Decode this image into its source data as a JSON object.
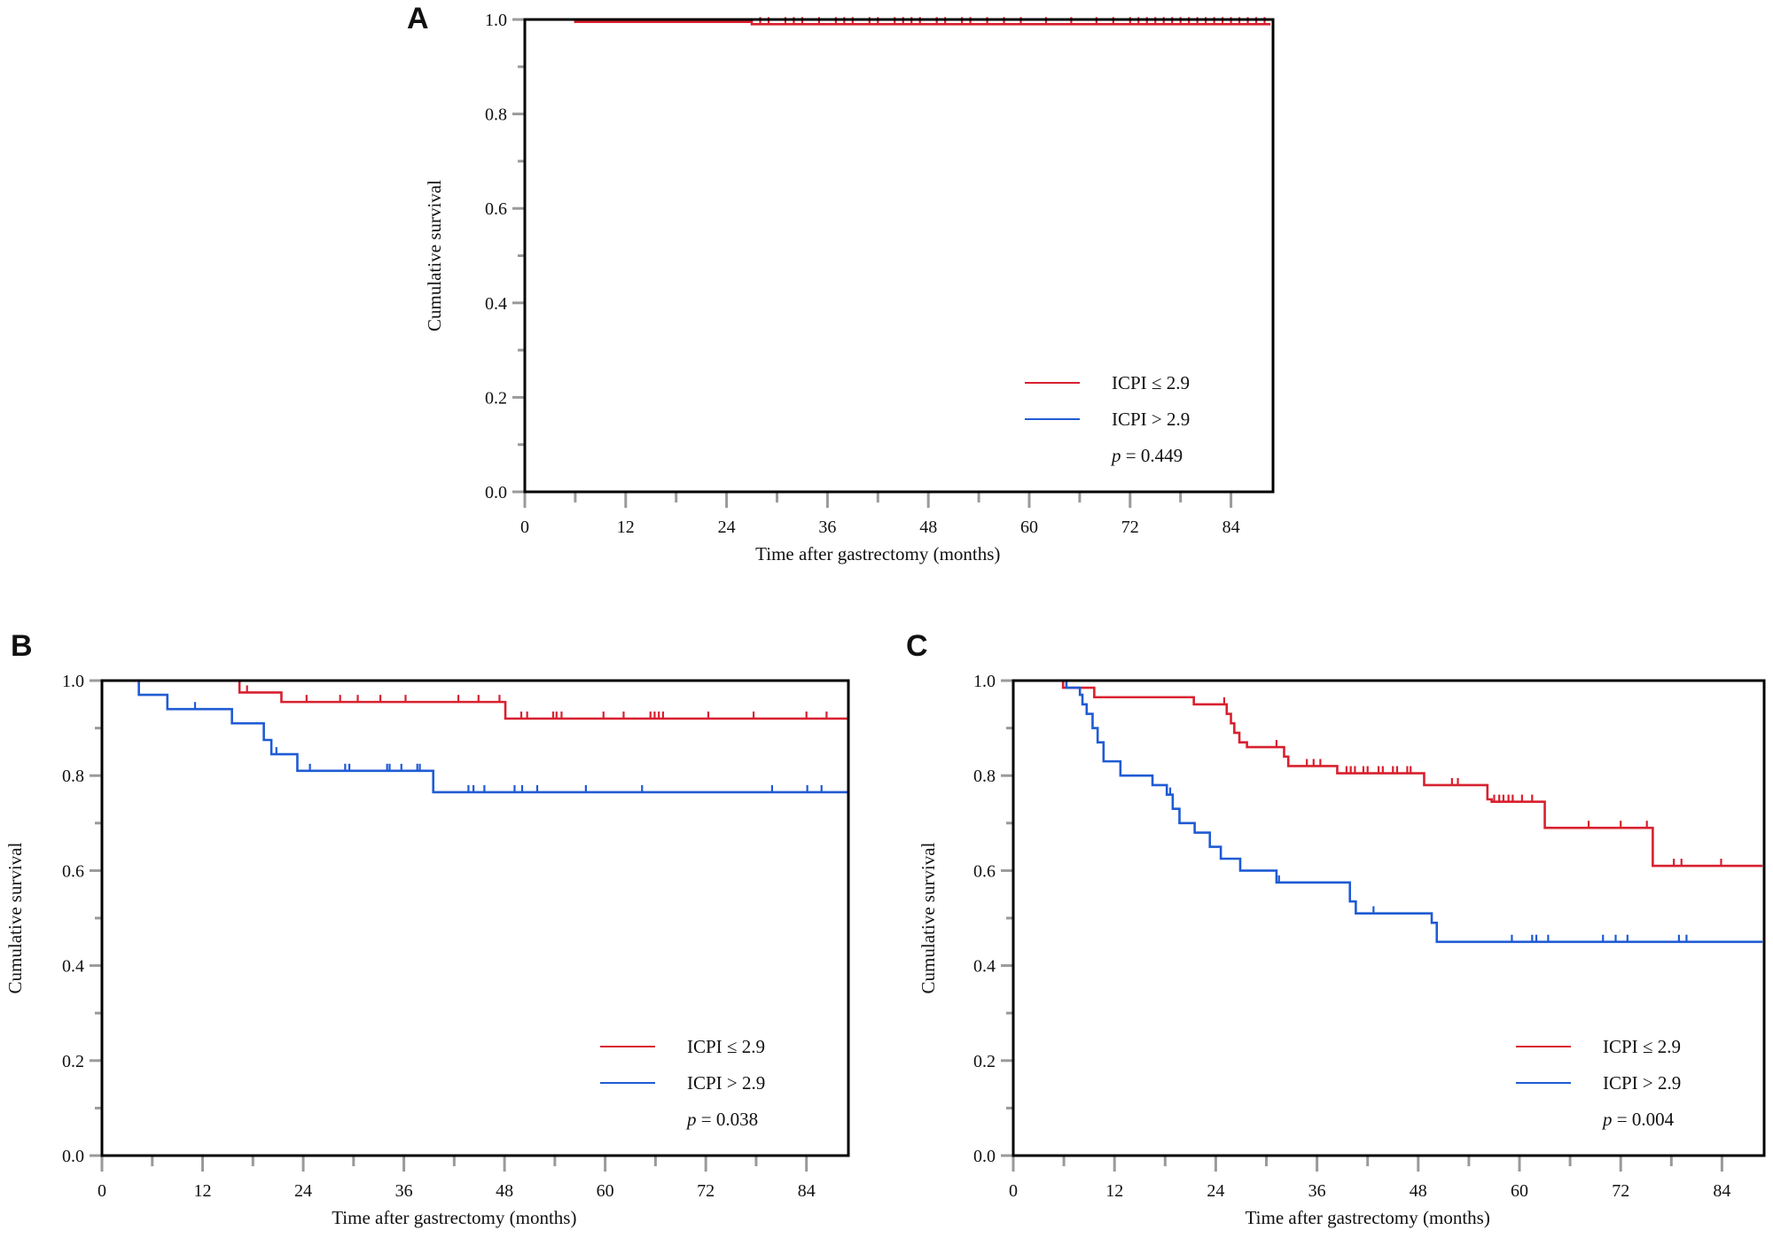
{
  "colors": {
    "low": "#d8202f",
    "high": "#1f5bd4",
    "axis": "#000000",
    "tick": "#9a9a9a"
  },
  "chart_data": [
    {
      "panel": "A",
      "type": "line",
      "xlabel": "Time after gastrectomy (months)",
      "ylabel": "Cumulative survival",
      "xlim": [
        0,
        89
      ],
      "ylim": [
        0,
        1
      ],
      "xticks": [
        0,
        12,
        24,
        36,
        48,
        60,
        72,
        84
      ],
      "yticks": [
        "0.0",
        "0.2",
        "0.4",
        "0.6",
        "0.8",
        "1.0"
      ],
      "legend_placement": "bottom-right",
      "p_value": "p = 0.449",
      "series": [
        {
          "name": "ICPI ≤ 2.9",
          "color_key": "low",
          "steps": [
            [
              0,
              1.0
            ],
            [
              6,
              0.995
            ],
            [
              27,
              0.99
            ],
            [
              88.7,
              0.99
            ]
          ],
          "censored": [
            28,
            29,
            31,
            32,
            33,
            35,
            37,
            38,
            39,
            41,
            42,
            44,
            45,
            46,
            47,
            49,
            50,
            52,
            53,
            55,
            57,
            59,
            62,
            65,
            68,
            70,
            72,
            73,
            74,
            75,
            76,
            77,
            78,
            79,
            80,
            81,
            82,
            83,
            84,
            85,
            86,
            87,
            88
          ]
        },
        {
          "name": "ICPI > 2.9",
          "color_key": "high",
          "steps": [
            [
              0,
              1.0
            ],
            [
              88.7,
              1.0
            ]
          ],
          "censored": []
        }
      ]
    },
    {
      "panel": "B",
      "type": "line",
      "xlabel": "Time after gastrectomy (months)",
      "ylabel": "Cumulative survival",
      "xlim": [
        0,
        89
      ],
      "ylim": [
        0,
        1
      ],
      "xticks": [
        0,
        12,
        24,
        36,
        48,
        60,
        72,
        84
      ],
      "yticks": [
        "0.0",
        "0.2",
        "0.4",
        "0.6",
        "0.8",
        "1.0"
      ],
      "legend_placement": "bottom-right",
      "p_value": "p = 0.038",
      "series": [
        {
          "name": "ICPI ≤ 2.9",
          "color_key": "low",
          "steps": [
            [
              0,
              1.0
            ],
            [
              16.4,
              0.975
            ],
            [
              21.4,
              0.955
            ],
            [
              48.1,
              0.92
            ],
            [
              89,
              0.92
            ]
          ],
          "censored": [
            17.3,
            24.4,
            28.4,
            30.5,
            33.2,
            36.2,
            42.5,
            44.9,
            47.4,
            50.0,
            50.7,
            53.8,
            54.2,
            54.8,
            59.8,
            62.2,
            65.4,
            65.9,
            66.4,
            66.9,
            72.3,
            77.7,
            84.0,
            86.4
          ]
        },
        {
          "name": "ICPI > 2.9",
          "color_key": "high",
          "steps": [
            [
              0,
              1.0
            ],
            [
              4.4,
              0.97
            ],
            [
              7.8,
              0.94
            ],
            [
              15.5,
              0.91
            ],
            [
              19.3,
              0.875
            ],
            [
              20.2,
              0.845
            ],
            [
              23.3,
              0.81
            ],
            [
              39.5,
              0.765
            ],
            [
              89,
              0.765
            ]
          ],
          "censored": [
            11.1,
            20.8,
            24.8,
            29.0,
            29.5,
            34.0,
            34.3,
            35.7,
            37.6,
            37.9,
            43.7,
            44.3,
            45.6,
            49.2,
            50.1,
            51.9,
            57.7,
            64.4,
            79.9,
            84.1,
            85.8
          ]
        }
      ]
    },
    {
      "panel": "C",
      "type": "line",
      "xlabel": "Time after gastrectomy (months)",
      "ylabel": "Cumulative survival",
      "xlim": [
        0,
        89
      ],
      "ylim": [
        0,
        1
      ],
      "xticks": [
        0,
        12,
        24,
        36,
        48,
        60,
        72,
        84
      ],
      "yticks": [
        "0.0",
        "0.2",
        "0.4",
        "0.6",
        "0.8",
        "1.0"
      ],
      "legend_placement": "bottom-right",
      "p_value": "p = 0.004",
      "series": [
        {
          "name": "ICPI ≤ 2.9",
          "color_key": "low",
          "steps": [
            [
              0,
              1.0
            ],
            [
              5.9,
              0.985
            ],
            [
              9.6,
              0.965
            ],
            [
              21.4,
              0.95
            ],
            [
              25.3,
              0.93
            ],
            [
              25.8,
              0.91
            ],
            [
              26.2,
              0.89
            ],
            [
              26.8,
              0.87
            ],
            [
              27.7,
              0.86
            ],
            [
              32.1,
              0.84
            ],
            [
              32.6,
              0.82
            ],
            [
              38.4,
              0.805
            ],
            [
              48.7,
              0.78
            ],
            [
              56.2,
              0.75
            ],
            [
              56.7,
              0.745
            ],
            [
              63.0,
              0.69
            ],
            [
              75.8,
              0.61
            ],
            [
              88.8,
              0.61
            ]
          ],
          "censored": [
            25.0,
            31.2,
            34.8,
            35.6,
            36.4,
            39.5,
            40.0,
            40.5,
            41.5,
            42.0,
            43.3,
            43.8,
            45.0,
            45.5,
            46.7,
            47.1,
            52.0,
            52.7,
            57.0,
            57.6,
            58.1,
            58.7,
            59.2,
            60.3,
            61.5,
            68.2,
            72.0,
            75.1,
            78.3,
            79.2,
            83.9
          ]
        },
        {
          "name": "ICPI > 2.9",
          "color_key": "high",
          "steps": [
            [
              0,
              1.0
            ],
            [
              6.3,
              0.985
            ],
            [
              7.9,
              0.97
            ],
            [
              8.2,
              0.95
            ],
            [
              8.7,
              0.93
            ],
            [
              9.4,
              0.9
            ],
            [
              10.0,
              0.87
            ],
            [
              10.7,
              0.83
            ],
            [
              12.7,
              0.8
            ],
            [
              16.5,
              0.78
            ],
            [
              18.2,
              0.76
            ],
            [
              18.9,
              0.73
            ],
            [
              19.7,
              0.7
            ],
            [
              21.5,
              0.68
            ],
            [
              23.3,
              0.65
            ],
            [
              24.6,
              0.625
            ],
            [
              26.9,
              0.6
            ],
            [
              31.2,
              0.575
            ],
            [
              39.9,
              0.535
            ],
            [
              40.6,
              0.51
            ],
            [
              49.6,
              0.49
            ],
            [
              50.2,
              0.45
            ],
            [
              88.8,
              0.45
            ]
          ],
          "censored": [
            18.6,
            31.5,
            42.7,
            59.1,
            61.5,
            62.0,
            63.4,
            69.9,
            71.4,
            72.8,
            78.9,
            79.8
          ]
        }
      ]
    }
  ]
}
